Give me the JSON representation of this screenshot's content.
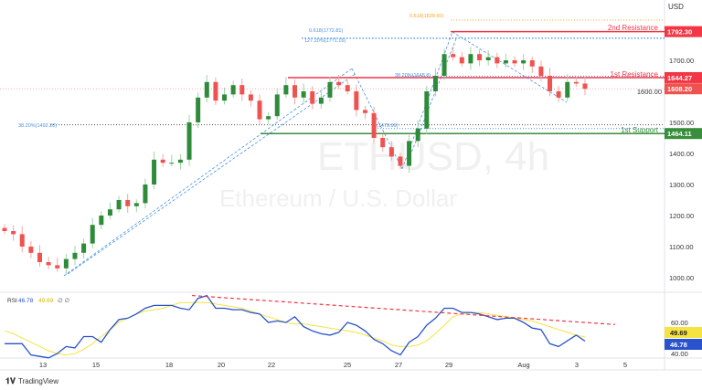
{
  "symbol_watermark": "ETHUSD, 4h",
  "symbol_description": "Ethereum / U.S. Dollar",
  "currency": "USD",
  "branding": "TradingView",
  "colors": {
    "up": "#2e8b3a",
    "down": "#ef5350",
    "resistance": "#f23645",
    "support": "#388e3c",
    "fib": "#4a90e2",
    "rsi": "#2952cc",
    "rsi_ma": "#f5e342",
    "fib_ext": "#f5a623"
  },
  "chart_data": [
    {
      "type": "candlestick",
      "title": "",
      "y_axis": {
        "ticks": [
          1000,
          1100,
          1200,
          1300,
          1400,
          1500,
          1600,
          1700
        ],
        "range": [
          960,
          1860
        ],
        "position": "right"
      },
      "x_axis": {
        "ticks": [
          "13",
          "15",
          "18",
          "20",
          "22",
          "25",
          "27",
          "29",
          "Aug",
          "3",
          "5"
        ]
      },
      "closes": [
        1150,
        1140,
        1100,
        1080,
        1050,
        1040,
        1030,
        1060,
        1080,
        1110,
        1170,
        1200,
        1220,
        1250,
        1230,
        1240,
        1300,
        1380,
        1370,
        1370,
        1380,
        1500,
        1580,
        1630,
        1570,
        1590,
        1620,
        1590,
        1570,
        1510,
        1520,
        1590,
        1620,
        1580,
        1600,
        1560,
        1580,
        1630,
        1620,
        1600,
        1540,
        1530,
        1450,
        1420,
        1390,
        1360,
        1440,
        1480,
        1600,
        1650,
        1720,
        1710,
        1690,
        1720,
        1700,
        1710,
        1690,
        1700,
        1690,
        1700,
        1680,
        1650,
        1600,
        1580,
        1630,
        1625,
        1608.2
      ],
      "last_price": "1608.20",
      "levels": [
        {
          "label": "2nd Resistance",
          "value": "1792.30",
          "type": "resistance"
        },
        {
          "label": "1st Resistance",
          "value": "1644.27",
          "type": "resistance"
        },
        {
          "label": "1st Support",
          "value": "1464.11",
          "type": "support"
        }
      ],
      "fib_labels": [
        {
          "text": "0.618(1829.60)",
          "value": 1829.6
        },
        {
          "text": "0.618(1772.81)",
          "value": 1778
        },
        {
          "text": "127.20%(1771.16)",
          "value": 1771.16
        },
        {
          "text": "38.20%(1648.8)",
          "value": 1648.8
        },
        {
          "text": "38.20%(1492.20)",
          "value": 1492.2
        },
        {
          "text": "(1479.99)",
          "value": 1479.99
        }
      ]
    },
    {
      "type": "line",
      "title": "RSI",
      "rsi_value": "46.78",
      "ma_value": "49.69",
      "extra": "∅ ∅",
      "y_axis": {
        "ticks": [
          "60.00",
          "40.00"
        ],
        "range": [
          35,
          85
        ]
      },
      "series": [
        {
          "values": [
            45,
            45,
            45,
            37,
            36,
            35,
            38,
            43,
            42,
            50,
            50,
            46,
            55,
            62,
            63,
            66,
            70,
            72,
            72,
            72,
            70,
            69,
            77,
            79,
            70,
            70,
            69,
            69,
            67,
            66,
            60,
            61,
            60,
            64,
            57,
            54,
            52,
            51,
            53,
            60,
            58,
            54,
            48,
            45,
            40,
            37,
            46,
            50,
            58,
            63,
            70,
            70,
            67,
            67,
            66,
            64,
            62,
            63,
            63,
            60,
            56,
            55,
            45,
            43,
            47,
            51,
            46.78
          ]
        },
        {
          "values": [
            54,
            52,
            49,
            46,
            43,
            40,
            38,
            37,
            38,
            41,
            45,
            50,
            55,
            60,
            63,
            66,
            68,
            69,
            70,
            72,
            74,
            74,
            74,
            74,
            73,
            72,
            71,
            70,
            68,
            66,
            64,
            62,
            60,
            59,
            59,
            58,
            57,
            56,
            55,
            54,
            53,
            51,
            49,
            47,
            44,
            43,
            43,
            44,
            47,
            52,
            58,
            64,
            66,
            67,
            67,
            66,
            65,
            64,
            63,
            62,
            61,
            59,
            57,
            55,
            53,
            51,
            49.69
          ]
        }
      ],
      "trendline": "descending"
    }
  ]
}
